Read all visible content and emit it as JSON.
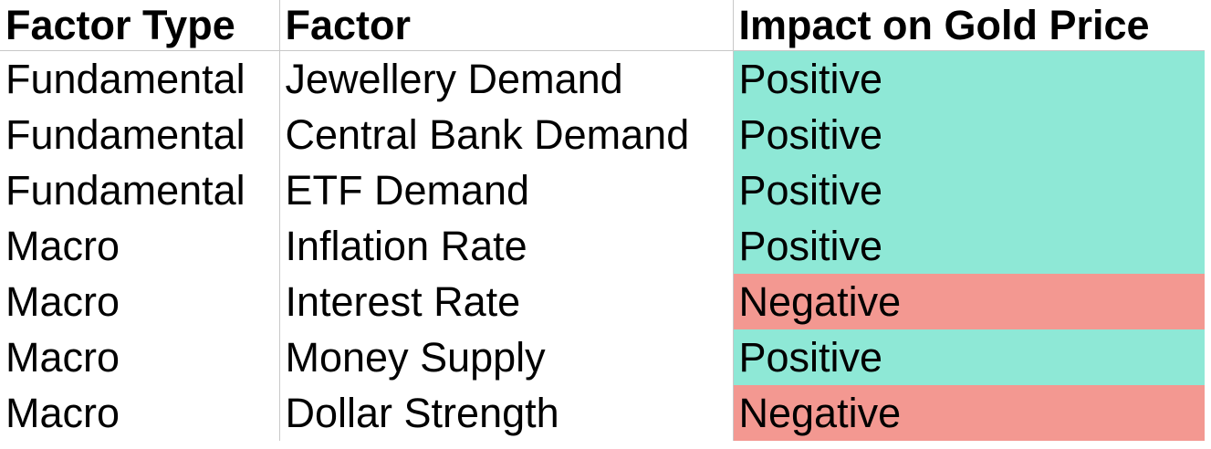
{
  "colors": {
    "positive": "#8ee8d6",
    "negative": "#f39891"
  },
  "table": {
    "headers": {
      "factor_type": "Factor Type",
      "factor": "Factor",
      "impact": "Impact on Gold Price"
    },
    "rows": [
      {
        "factor_type": "Fundamental",
        "factor": "Jewellery Demand",
        "impact": "Positive"
      },
      {
        "factor_type": "Fundamental",
        "factor": "Central Bank Demand",
        "impact": "Positive"
      },
      {
        "factor_type": "Fundamental",
        "factor": "ETF Demand",
        "impact": "Positive"
      },
      {
        "factor_type": "Macro",
        "factor": "Inflation Rate",
        "impact": "Positive"
      },
      {
        "factor_type": "Macro",
        "factor": "Interest Rate",
        "impact": "Negative"
      },
      {
        "factor_type": "Macro",
        "factor": "Money Supply",
        "impact": "Positive"
      },
      {
        "factor_type": "Macro",
        "factor": "Dollar Strength",
        "impact": "Negative"
      }
    ]
  }
}
